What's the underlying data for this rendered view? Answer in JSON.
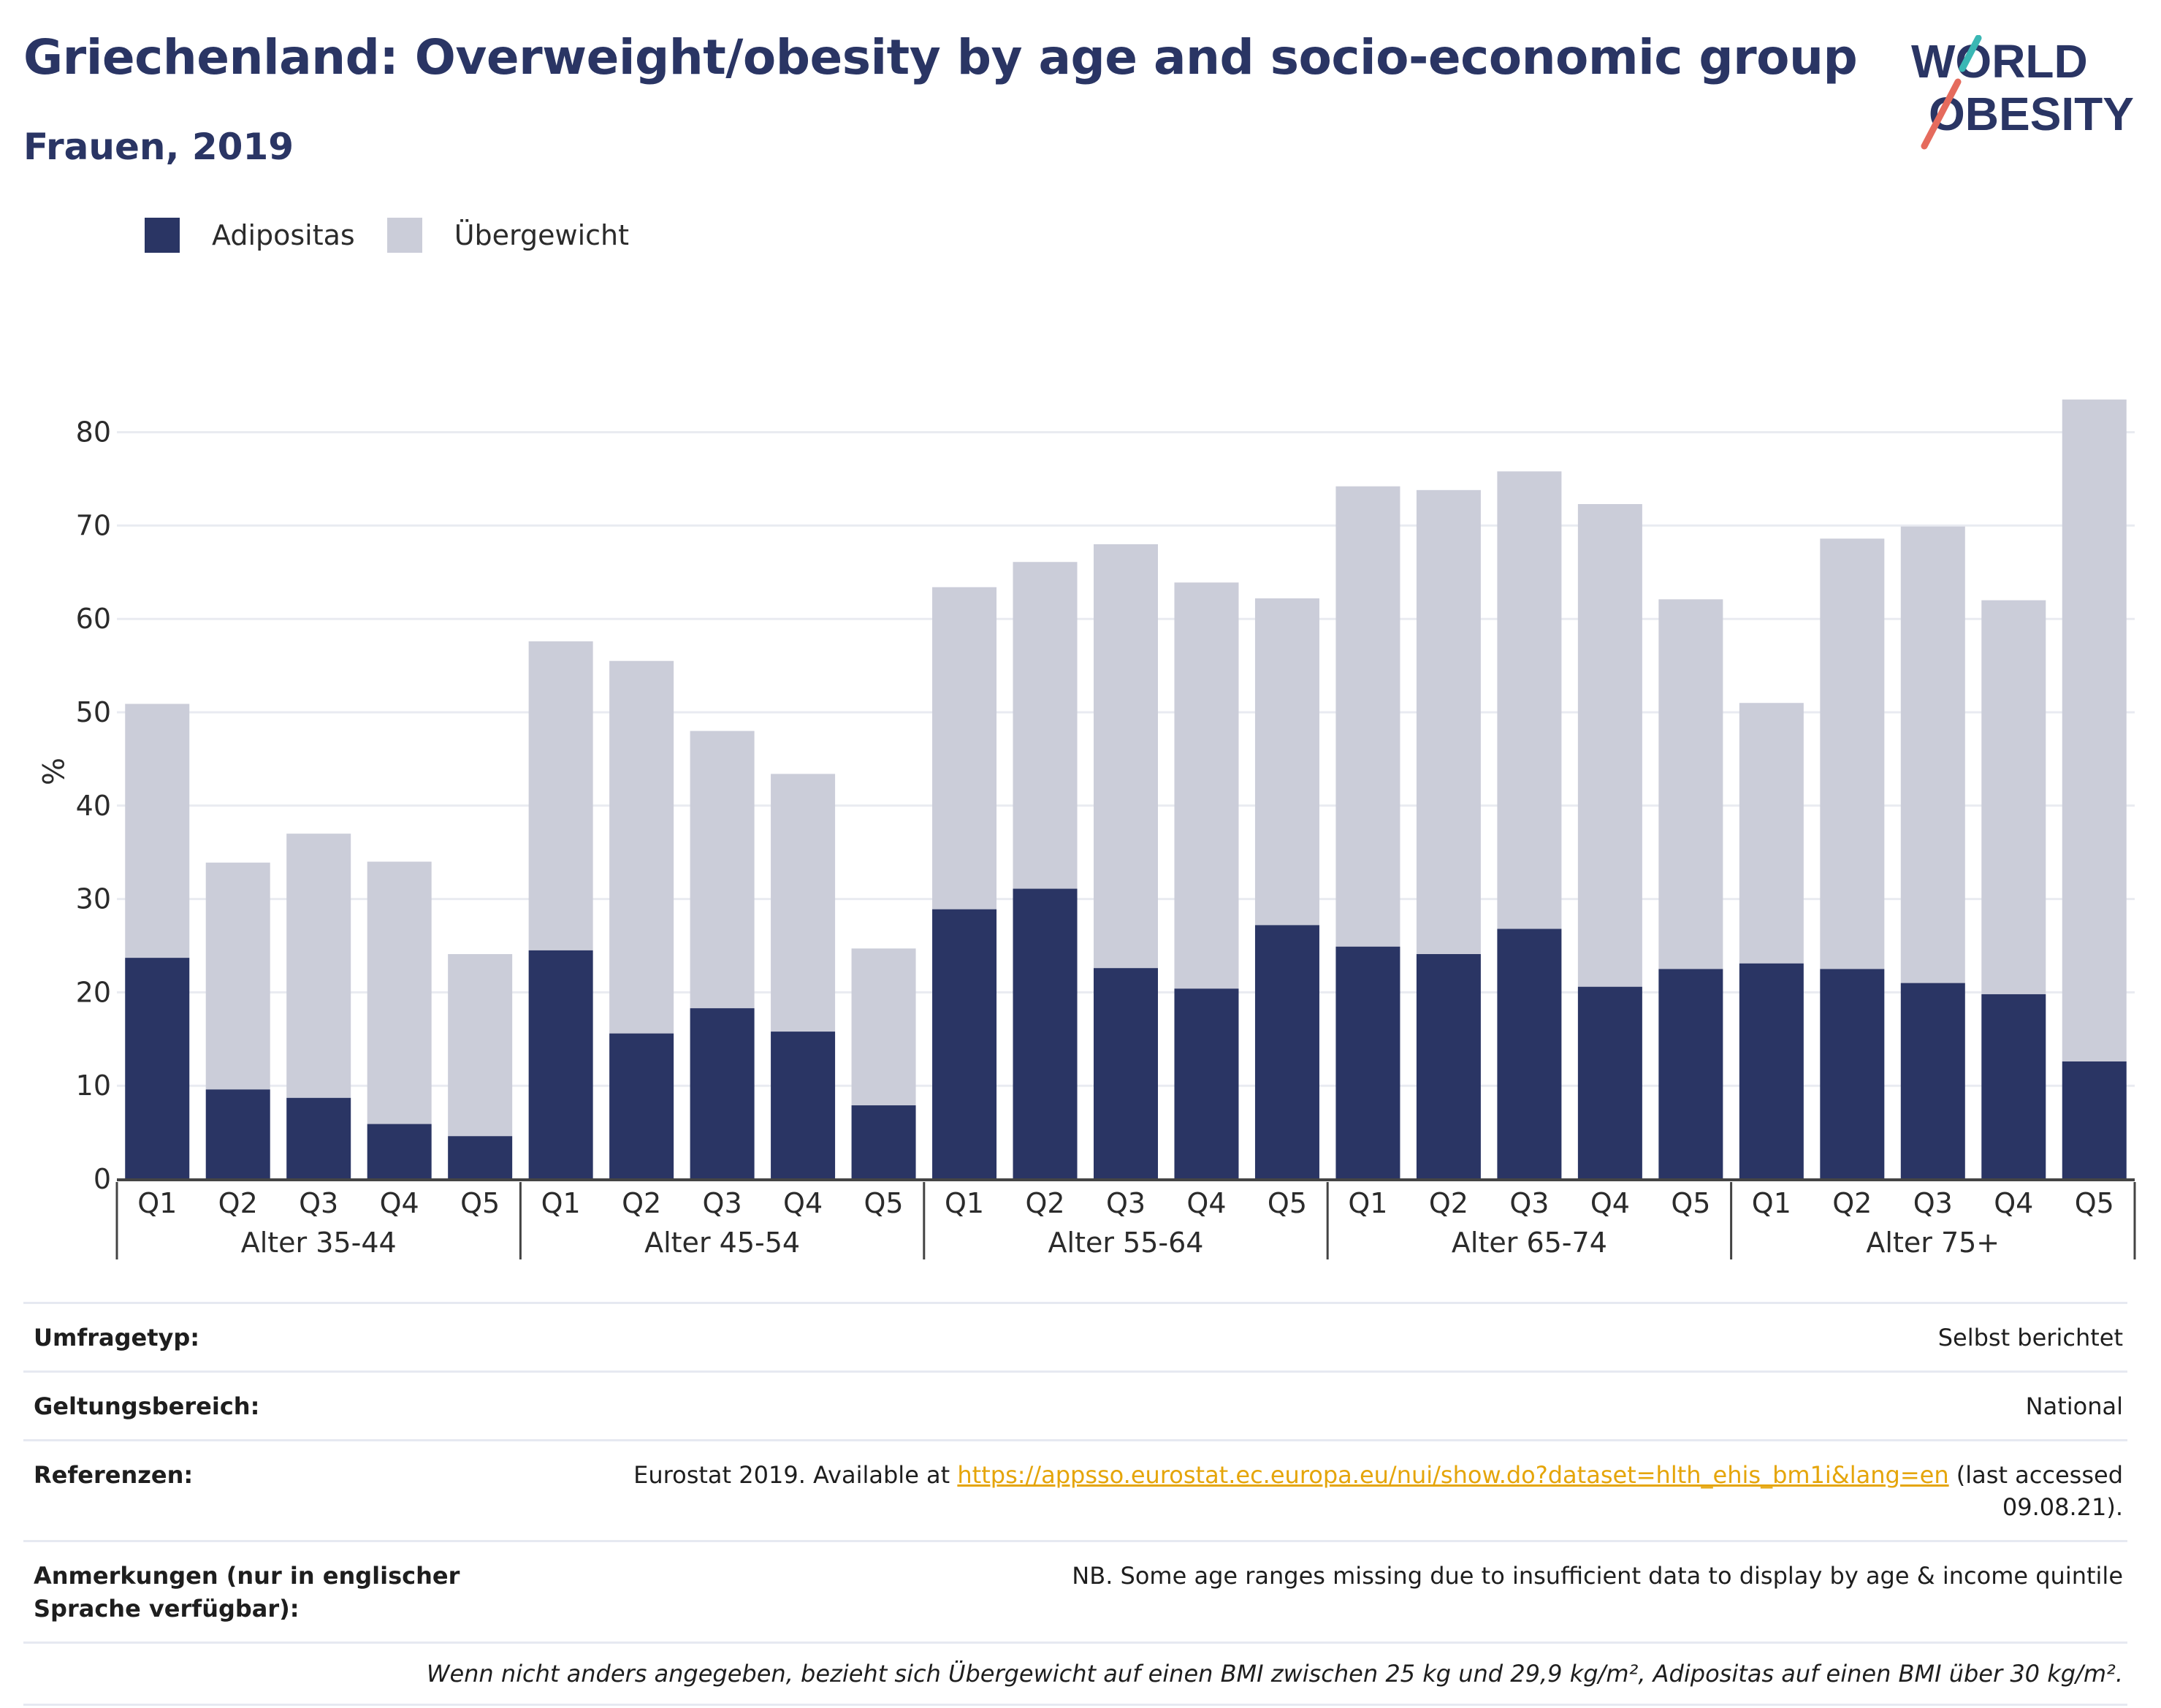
{
  "title": "Griechenland: Overweight/obesity by age and socio-economic group",
  "subtitle": "Frauen, 2019",
  "logo": {
    "line1": "WORLD",
    "line2": "OBESITY",
    "accent_teal": "#3ab7b4",
    "accent_coral": "#e56b5d"
  },
  "legend": [
    {
      "label": "Adipositas",
      "color": "#2a3564"
    },
    {
      "label": "Übergewicht",
      "color": "#cbcdd9"
    }
  ],
  "chart_data": {
    "type": "bar",
    "stacked": true,
    "ylabel": "%",
    "ylim": [
      0,
      85
    ],
    "yticks": [
      0,
      10,
      20,
      30,
      40,
      50,
      60,
      70,
      80
    ],
    "grid": true,
    "legend_position": "top-left",
    "groups": [
      {
        "label": "Alter 35-44",
        "categories": [
          "Q1",
          "Q2",
          "Q3",
          "Q4",
          "Q5"
        ],
        "adipositas": [
          23.7,
          9.6,
          8.7,
          5.9,
          4.6
        ],
        "total": [
          50.9,
          33.9,
          37.0,
          34.0,
          24.1
        ]
      },
      {
        "label": "Alter 45-54",
        "categories": [
          "Q1",
          "Q2",
          "Q3",
          "Q4",
          "Q5"
        ],
        "adipositas": [
          24.5,
          15.6,
          18.3,
          15.8,
          7.9
        ],
        "total": [
          57.6,
          55.5,
          48.0,
          43.4,
          24.7
        ]
      },
      {
        "label": "Alter 55-64",
        "categories": [
          "Q1",
          "Q2",
          "Q3",
          "Q4",
          "Q5"
        ],
        "adipositas": [
          28.9,
          31.1,
          22.6,
          20.4,
          27.2
        ],
        "total": [
          63.4,
          66.1,
          68.0,
          63.9,
          62.2
        ]
      },
      {
        "label": "Alter 65-74",
        "categories": [
          "Q1",
          "Q2",
          "Q3",
          "Q4",
          "Q5"
        ],
        "adipositas": [
          24.9,
          24.1,
          26.8,
          20.6,
          22.5
        ],
        "total": [
          74.2,
          73.8,
          75.8,
          72.3,
          62.1
        ]
      },
      {
        "label": "Alter 75+",
        "categories": [
          "Q1",
          "Q2",
          "Q3",
          "Q4",
          "Q5"
        ],
        "adipositas": [
          23.1,
          22.5,
          21.0,
          19.8,
          12.6
        ],
        "total": [
          51.0,
          68.6,
          69.9,
          62.0,
          83.5
        ]
      }
    ],
    "colors": {
      "adipositas": "#2a3564",
      "uebergewicht": "#cbcdd9",
      "grid": "#e9ebf1",
      "axis": "#444444"
    }
  },
  "meta": {
    "survey_label": "Umfragetyp:",
    "survey_value": "Selbst berichtet",
    "scope_label": "Geltungsbereich:",
    "scope_value": "National",
    "ref_label": "Referenzen:",
    "ref_prefix": "Eurostat 2019. Available at ",
    "ref_link": "https://appsso.eurostat.ec.europa.eu/nui/show.do?dataset=hlth_ehis_bm1i&lang=en",
    "ref_suffix": " (last accessed",
    "ref_date": "09.08.21).",
    "notes_label": "Anmerkungen (nur in englischer Sprache verfügbar):",
    "notes_value": "NB. Some age ranges missing due to insufficient data to display by age & income quintile",
    "footnote": "Wenn nicht anders angegeben, bezieht sich Übergewicht auf einen BMI zwischen 25 kg und 29,9 kg/m², Adipositas auf einen BMI über 30 kg/m²."
  }
}
